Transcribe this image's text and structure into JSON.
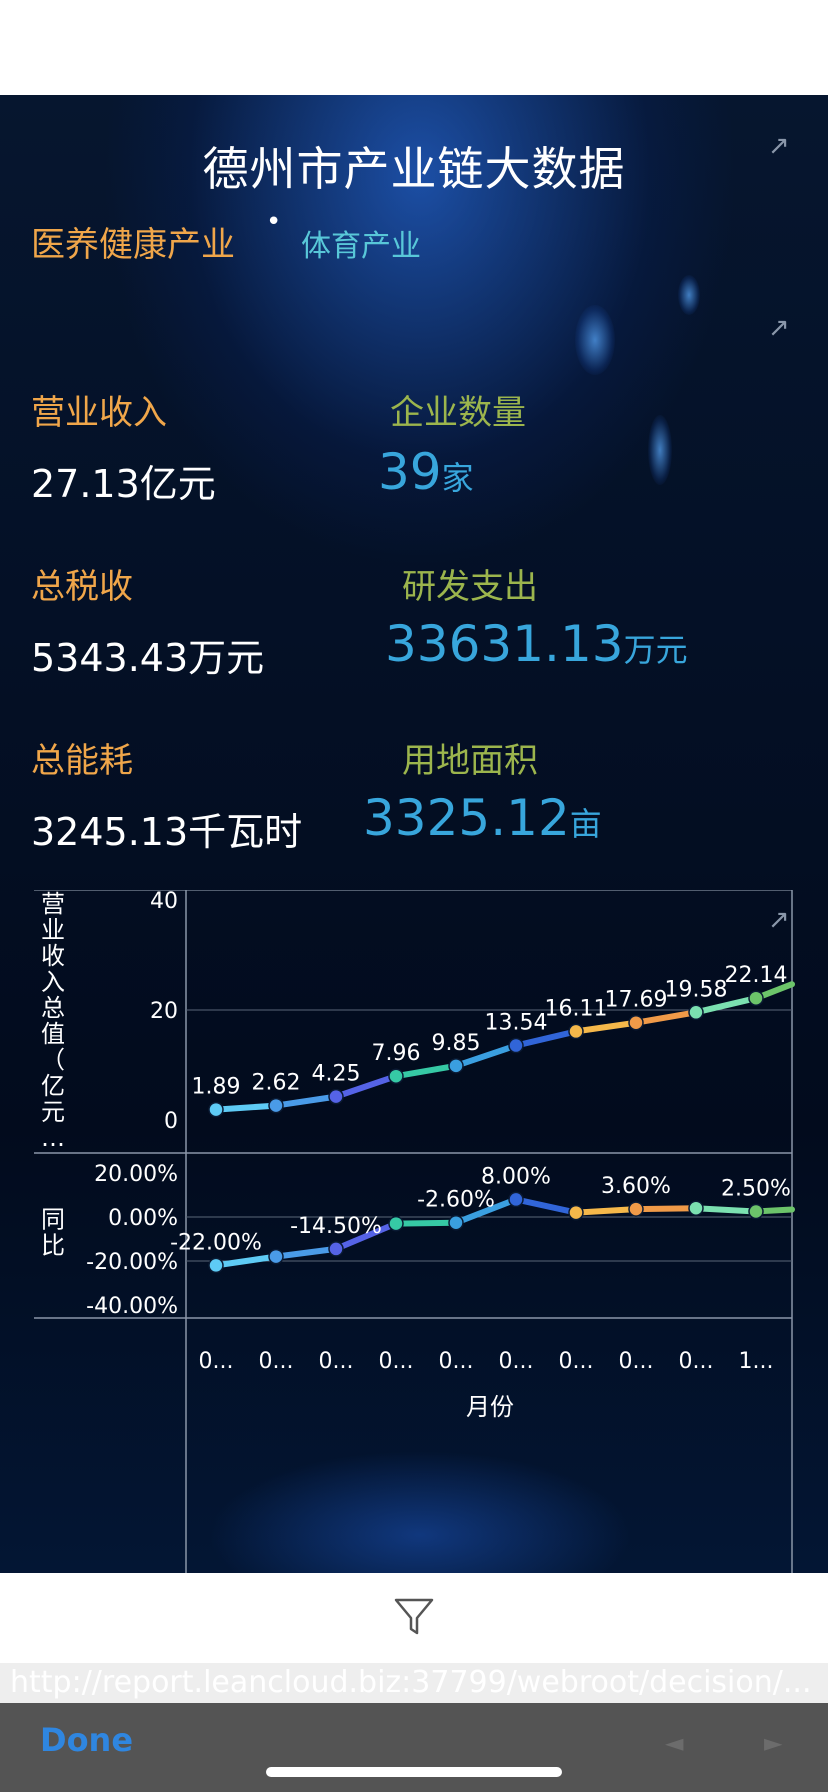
{
  "dashboard": {
    "title": "德州市产业链大数据",
    "expand_icon": "↗",
    "tabs": [
      {
        "label": "医养健康产业",
        "active": true
      },
      {
        "label": "体育产业",
        "active": false
      }
    ],
    "tab_separator": "•",
    "kpis": {
      "revenue_label": "营业收入",
      "revenue_value": "27.13亿元",
      "companies_label": "企业数量",
      "companies_value": "39",
      "companies_unit": "家",
      "tax_label": "总税收",
      "tax_value": "5343.43万元",
      "rd_label": "研发支出",
      "rd_value": "33631.13",
      "rd_unit": "万元",
      "energy_label": "总能耗",
      "energy_value": "3245.13千瓦时",
      "land_label": "用地面积",
      "land_value": "3325.12",
      "land_unit": "亩"
    }
  },
  "chart_data": {
    "type": "line",
    "x": [
      "0...",
      "0...",
      "0...",
      "0...",
      "0...",
      "0...",
      "0...",
      "0...",
      "0...",
      "1..."
    ],
    "xlabel": "月份",
    "panels": [
      {
        "ylabel": "营业收入总值（亿元…",
        "ylim": [
          0,
          40
        ],
        "yticks": [
          "40",
          "20",
          "0"
        ],
        "values": [
          1.89,
          2.62,
          4.25,
          7.96,
          9.85,
          13.54,
          16.11,
          17.69,
          19.58,
          22.14
        ],
        "labels": [
          "1.89",
          "2.62",
          "4.25",
          "7.96",
          "9.85",
          "13.54",
          "16.11",
          "17.69",
          "19.58",
          "22.14"
        ]
      },
      {
        "ylabel": "同比",
        "ylim": [
          -40,
          20
        ],
        "yticks": [
          "20.00%",
          "0.00%",
          "-20.00%",
          "-40.00%"
        ],
        "values": [
          -22.0,
          -18.0,
          -14.5,
          -3.0,
          -2.6,
          8.0,
          2.0,
          3.6,
          4.0,
          2.5
        ],
        "labels": [
          "-22.00%",
          "",
          "-14.50%",
          "",
          "-2.60%",
          "8.00%",
          "",
          "3.60%",
          "",
          "2.50%"
        ]
      }
    ],
    "colors": [
      "#5ecbf5",
      "#4a9be8",
      "#5563e6",
      "#36c9a5",
      "#3a9fe0",
      "#3165d8",
      "#f5b84a",
      "#f09a48",
      "#7be0b0",
      "#6cc46a"
    ],
    "grid": true
  },
  "filter_icon": "filter-funnel",
  "url_text": "http://report.leancloud.biz:37799/webroot/decision/...",
  "toolbar": {
    "done_label": "Done",
    "back_icon": "◄",
    "forward_icon": "►"
  }
}
